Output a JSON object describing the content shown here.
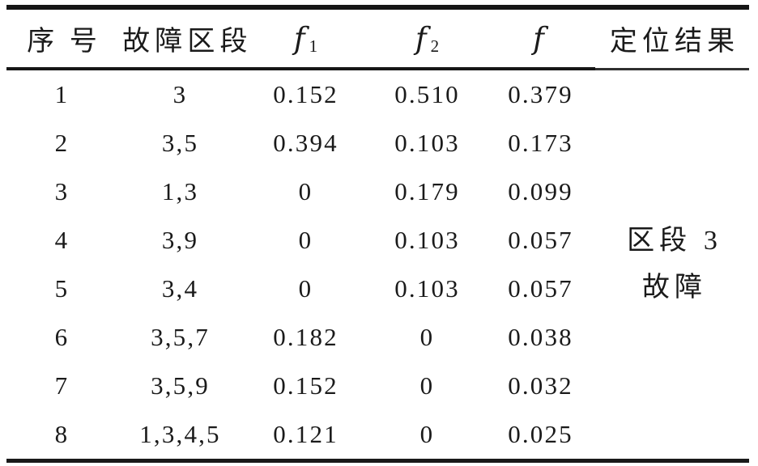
{
  "table": {
    "headers": {
      "serial": "序号",
      "fault_section": "故障区段",
      "f1": {
        "base": "f",
        "sub": "1"
      },
      "f2": {
        "base": "f",
        "sub": "2"
      },
      "f": {
        "base": "f",
        "sub": ""
      },
      "location_result": "定位结果"
    },
    "rows": [
      {
        "no": "1",
        "section": "3",
        "f1": "0.152",
        "f2": "0.510",
        "f": "0.379"
      },
      {
        "no": "2",
        "section": "3,5",
        "f1": "0.394",
        "f2": "0.103",
        "f": "0.173"
      },
      {
        "no": "3",
        "section": "1,3",
        "f1": "0",
        "f2": "0.179",
        "f": "0.099"
      },
      {
        "no": "4",
        "section": "3,9",
        "f1": "0",
        "f2": "0.103",
        "f": "0.057"
      },
      {
        "no": "5",
        "section": "3,4",
        "f1": "0",
        "f2": "0.103",
        "f": "0.057"
      },
      {
        "no": "6",
        "section": "3,5,7",
        "f1": "0.182",
        "f2": "0",
        "f": "0.038"
      },
      {
        "no": "7",
        "section": "3,5,9",
        "f1": "0.152",
        "f2": "0",
        "f": "0.032"
      },
      {
        "no": "8",
        "section": "1,3,4,5",
        "f1": "0.121",
        "f2": "0",
        "f": "0.025"
      }
    ],
    "result_cell": {
      "line1": "区段 3",
      "line2": "故障"
    }
  },
  "colors": {
    "background": "#ffffff",
    "text": "#1a1a1a",
    "rule": "#161616"
  }
}
